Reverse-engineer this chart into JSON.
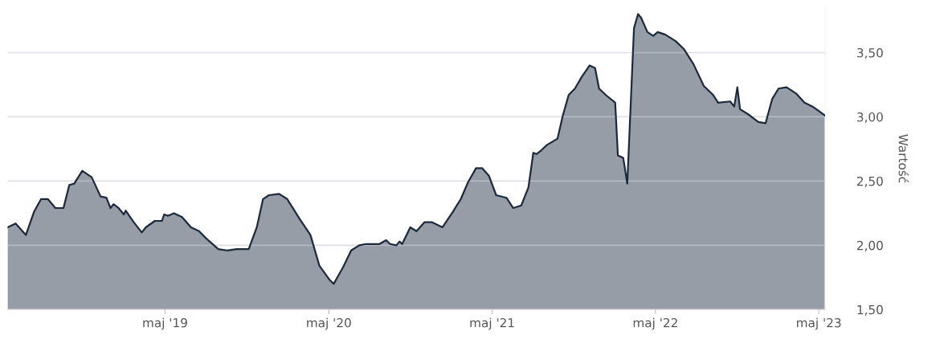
{
  "chart_data": {
    "type": "area",
    "ylabel": "Wartość",
    "xlim": [
      "2018-05-14",
      "2023-05-15"
    ],
    "xticks": [
      {
        "value": "2019-05-01",
        "label": "maj '19"
      },
      {
        "value": "2020-05-01",
        "label": "maj '20"
      },
      {
        "value": "2021-05-01",
        "label": "maj '21"
      },
      {
        "value": "2022-05-01",
        "label": "maj '22"
      },
      {
        "value": "2023-05-01",
        "label": "maj '23"
      }
    ],
    "ylim": [
      1.5,
      3.85
    ],
    "yticks": [
      {
        "value": 1.5,
        "label": "1,50"
      },
      {
        "value": 2.0,
        "label": "2,00"
      },
      {
        "value": 2.5,
        "label": "2,50"
      },
      {
        "value": 3.0,
        "label": "3,00"
      },
      {
        "value": 3.5,
        "label": "3,50"
      }
    ],
    "grid": "y",
    "legend": false,
    "x": [
      "2018-05-14",
      "2018-06-01",
      "2018-06-24",
      "2018-07-12",
      "2018-07-28",
      "2018-08-12",
      "2018-08-29",
      "2018-09-16",
      "2018-09-29",
      "2018-10-10",
      "2018-10-28",
      "2018-11-18",
      "2018-12-08",
      "2018-12-21",
      "2018-12-30",
      "2019-01-06",
      "2019-01-17",
      "2019-01-29",
      "2019-02-02",
      "2019-02-20",
      "2019-03-10",
      "2019-03-19",
      "2019-04-08",
      "2019-04-24",
      "2019-04-29",
      "2019-05-08",
      "2019-05-21",
      "2019-06-08",
      "2019-06-28",
      "2019-07-16",
      "2019-08-02",
      "2019-08-28",
      "2019-09-16",
      "2019-10-08",
      "2019-11-04",
      "2019-11-22",
      "2019-12-06",
      "2019-12-19",
      "2020-01-11",
      "2020-01-29",
      "2020-02-25",
      "2020-03-21",
      "2020-04-10",
      "2020-05-03",
      "2020-05-12",
      "2020-06-02",
      "2020-06-20",
      "2020-07-08",
      "2020-07-23",
      "2020-08-22",
      "2020-09-06",
      "2020-09-15",
      "2020-09-29",
      "2020-10-06",
      "2020-10-12",
      "2020-10-30",
      "2020-11-13",
      "2020-12-01",
      "2020-12-17",
      "2021-01-10",
      "2021-02-02",
      "2021-02-20",
      "2021-03-08",
      "2021-03-26",
      "2021-04-09",
      "2021-04-24",
      "2021-05-10",
      "2021-06-02",
      "2021-06-17",
      "2021-07-05",
      "2021-07-21",
      "2021-08-01",
      "2021-08-08",
      "2021-08-19",
      "2021-08-31",
      "2021-09-24",
      "2021-10-06",
      "2021-10-19",
      "2021-11-02",
      "2021-11-17",
      "2021-12-05",
      "2021-12-17",
      "2021-12-26",
      "2022-01-10",
      "2022-01-31",
      "2022-02-06",
      "2022-02-18",
      "2022-02-27",
      "2022-03-14",
      "2022-03-23",
      "2022-03-30",
      "2022-04-13",
      "2022-04-26",
      "2022-05-06",
      "2022-05-23",
      "2022-06-15",
      "2022-07-03",
      "2022-07-25",
      "2022-08-17",
      "2022-09-07",
      "2022-09-18",
      "2022-10-15",
      "2022-10-24",
      "2022-10-31",
      "2022-11-06",
      "2022-11-24",
      "2022-12-17",
      "2023-01-02",
      "2023-01-17",
      "2023-01-31",
      "2023-02-18",
      "2023-03-12",
      "2023-03-30",
      "2023-04-17",
      "2023-04-29",
      "2023-05-15"
    ],
    "series": [
      {
        "color": "#1c2a3c",
        "values": [
          2.14,
          2.17,
          2.08,
          2.26,
          2.36,
          2.36,
          2.29,
          2.29,
          2.47,
          2.48,
          2.58,
          2.53,
          2.38,
          2.37,
          2.29,
          2.32,
          2.29,
          2.24,
          2.27,
          2.18,
          2.1,
          2.14,
          2.19,
          2.19,
          2.24,
          2.23,
          2.25,
          2.22,
          2.14,
          2.11,
          2.05,
          1.97,
          1.96,
          1.97,
          1.97,
          2.14,
          2.36,
          2.39,
          2.4,
          2.36,
          2.21,
          2.08,
          1.84,
          1.73,
          1.7,
          1.83,
          1.96,
          2.0,
          2.01,
          2.01,
          2.04,
          2.01,
          2.0,
          2.03,
          2.01,
          2.14,
          2.11,
          2.18,
          2.18,
          2.14,
          2.26,
          2.36,
          2.49,
          2.6,
          2.6,
          2.54,
          2.39,
          2.37,
          2.29,
          2.31,
          2.45,
          2.72,
          2.71,
          2.74,
          2.78,
          2.83,
          3.01,
          3.17,
          3.22,
          3.31,
          3.4,
          3.38,
          3.22,
          3.17,
          3.11,
          2.7,
          2.68,
          2.48,
          3.69,
          3.8,
          3.77,
          3.66,
          3.63,
          3.66,
          3.64,
          3.59,
          3.53,
          3.41,
          3.24,
          3.17,
          3.11,
          3.12,
          3.08,
          3.23,
          3.06,
          3.02,
          2.96,
          2.95,
          3.14,
          3.22,
          3.23,
          3.18,
          3.11,
          3.08,
          3.05,
          3.01
        ]
      }
    ]
  }
}
